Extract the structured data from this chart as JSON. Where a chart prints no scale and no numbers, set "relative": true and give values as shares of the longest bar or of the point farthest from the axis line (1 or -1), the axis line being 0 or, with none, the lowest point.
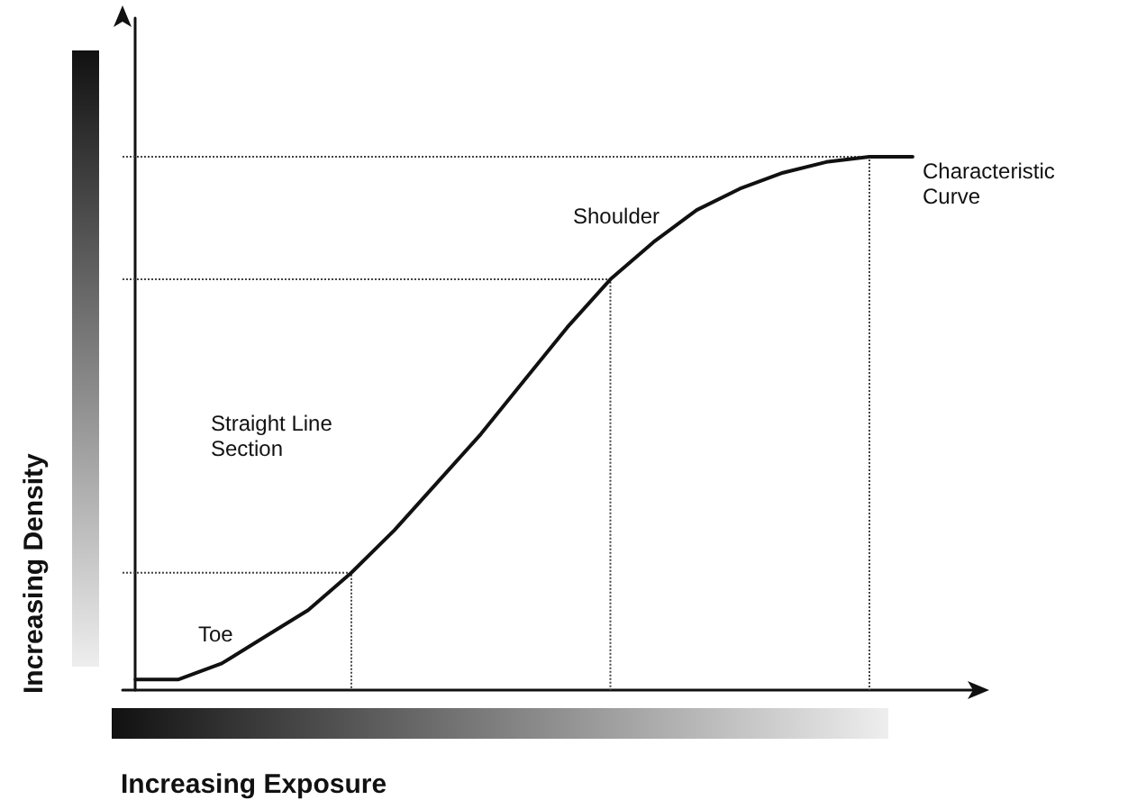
{
  "chart_data": {
    "type": "line",
    "relative": true,
    "xlabel": "Increasing Exposure",
    "ylabel": "Increasing Density",
    "categories": [
      null,
      null,
      null,
      null,
      null,
      null,
      null,
      null,
      null,
      null,
      null,
      null,
      null,
      null,
      null,
      null,
      null,
      null,
      null
    ],
    "values": [
      0.02,
      0.02,
      0.05,
      0.1,
      0.15,
      0.22,
      0.3,
      0.39,
      0.48,
      0.58,
      0.68,
      0.77,
      0.84,
      0.9,
      0.94,
      0.97,
      0.99,
      1,
      1
    ],
    "color": "#111111",
    "marker": "none",
    "line_style": "solid",
    "grid": false,
    "ref_lines": [
      {
        "axis": "y",
        "value": 0.22,
        "line_style": "dotted",
        "color": "#444444"
      },
      {
        "axis": "y",
        "value": 0.77,
        "line_style": "dotted",
        "color": "#444444"
      },
      {
        "axis": "y",
        "value": 1,
        "line_style": "dotted",
        "color": "#444444"
      }
    ],
    "annotations": [
      "Toe",
      "Straight Line Section",
      "Shoulder",
      "Characteristic Curve"
    ]
  }
}
